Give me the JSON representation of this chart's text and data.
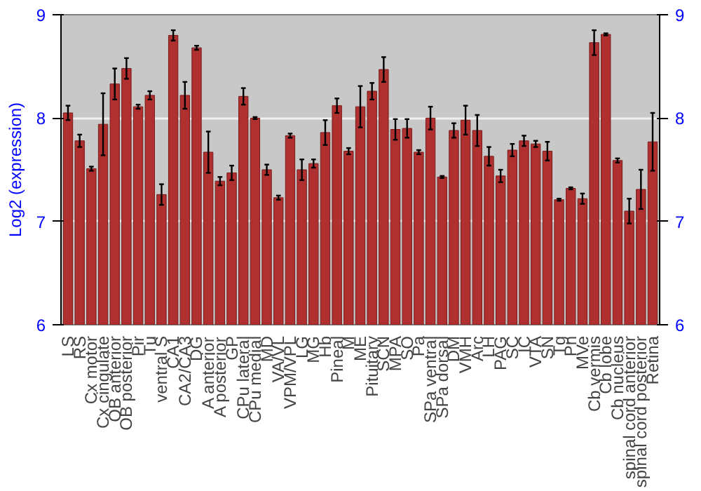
{
  "chart_data": {
    "type": "bar",
    "ylabel": "Log2 (expression)",
    "categories": [
      "LS",
      "RS",
      "Cx motor",
      "Cx cingulate",
      "OB anterior",
      "OB posterior",
      "Pir",
      "Tu",
      "ventral S",
      "CA1",
      "CA2/CA3",
      "DG",
      "A anterior",
      "A posterior",
      "GP",
      "CPu lateral",
      "CPu medial",
      "MD",
      "VA/VL",
      "VPM/VPL",
      "LG",
      "MG",
      "Hb",
      "Pineal",
      "M",
      "ME",
      "Pituitary",
      "SCN",
      "MPA",
      "SO",
      "Pa",
      "SPa ventral",
      "SPa dorsal",
      "DM",
      "VMH",
      "Arc",
      "LH",
      "PAG",
      "SC",
      "IC",
      "VTA",
      "SN",
      "Tg",
      "Pn",
      "MVe",
      "Cb vermis",
      "Cb lobe",
      "Cb nucleus",
      "spinal cord anterior",
      "spinal cord posterior",
      "Retina"
    ],
    "values": [
      8.05,
      7.78,
      7.51,
      7.94,
      8.33,
      8.48,
      8.11,
      8.22,
      7.26,
      8.8,
      8.22,
      8.68,
      7.67,
      7.39,
      7.47,
      8.21,
      8.0,
      7.5,
      7.23,
      7.83,
      7.5,
      7.56,
      7.86,
      8.12,
      7.68,
      8.11,
      8.26,
      8.47,
      7.89,
      7.9,
      7.67,
      8.0,
      7.43,
      7.88,
      7.98,
      7.88,
      7.63,
      7.44,
      7.69,
      7.78,
      7.75,
      7.68,
      7.21,
      7.32,
      7.22,
      8.73,
      8.81,
      7.59,
      7.1,
      7.31,
      7.77
    ],
    "errors": [
      0.07,
      0.06,
      0.02,
      0.3,
      0.15,
      0.1,
      0.02,
      0.04,
      0.1,
      0.05,
      0.13,
      0.02,
      0.2,
      0.04,
      0.07,
      0.08,
      0.01,
      0.05,
      0.02,
      0.02,
      0.1,
      0.04,
      0.12,
      0.07,
      0.03,
      0.2,
      0.08,
      0.12,
      0.1,
      0.09,
      0.02,
      0.11,
      0.01,
      0.07,
      0.14,
      0.15,
      0.09,
      0.06,
      0.06,
      0.05,
      0.03,
      0.09,
      0.01,
      0.01,
      0.05,
      0.12,
      0.01,
      0.02,
      0.12,
      0.19,
      0.28
    ],
    "color": "#b03030",
    "ylim": [
      6,
      9
    ],
    "yticks": [
      6,
      7,
      8,
      9
    ],
    "y2lim": [
      6,
      9
    ],
    "y2ticks": [
      6,
      7,
      8,
      9
    ],
    "grid": "y"
  }
}
